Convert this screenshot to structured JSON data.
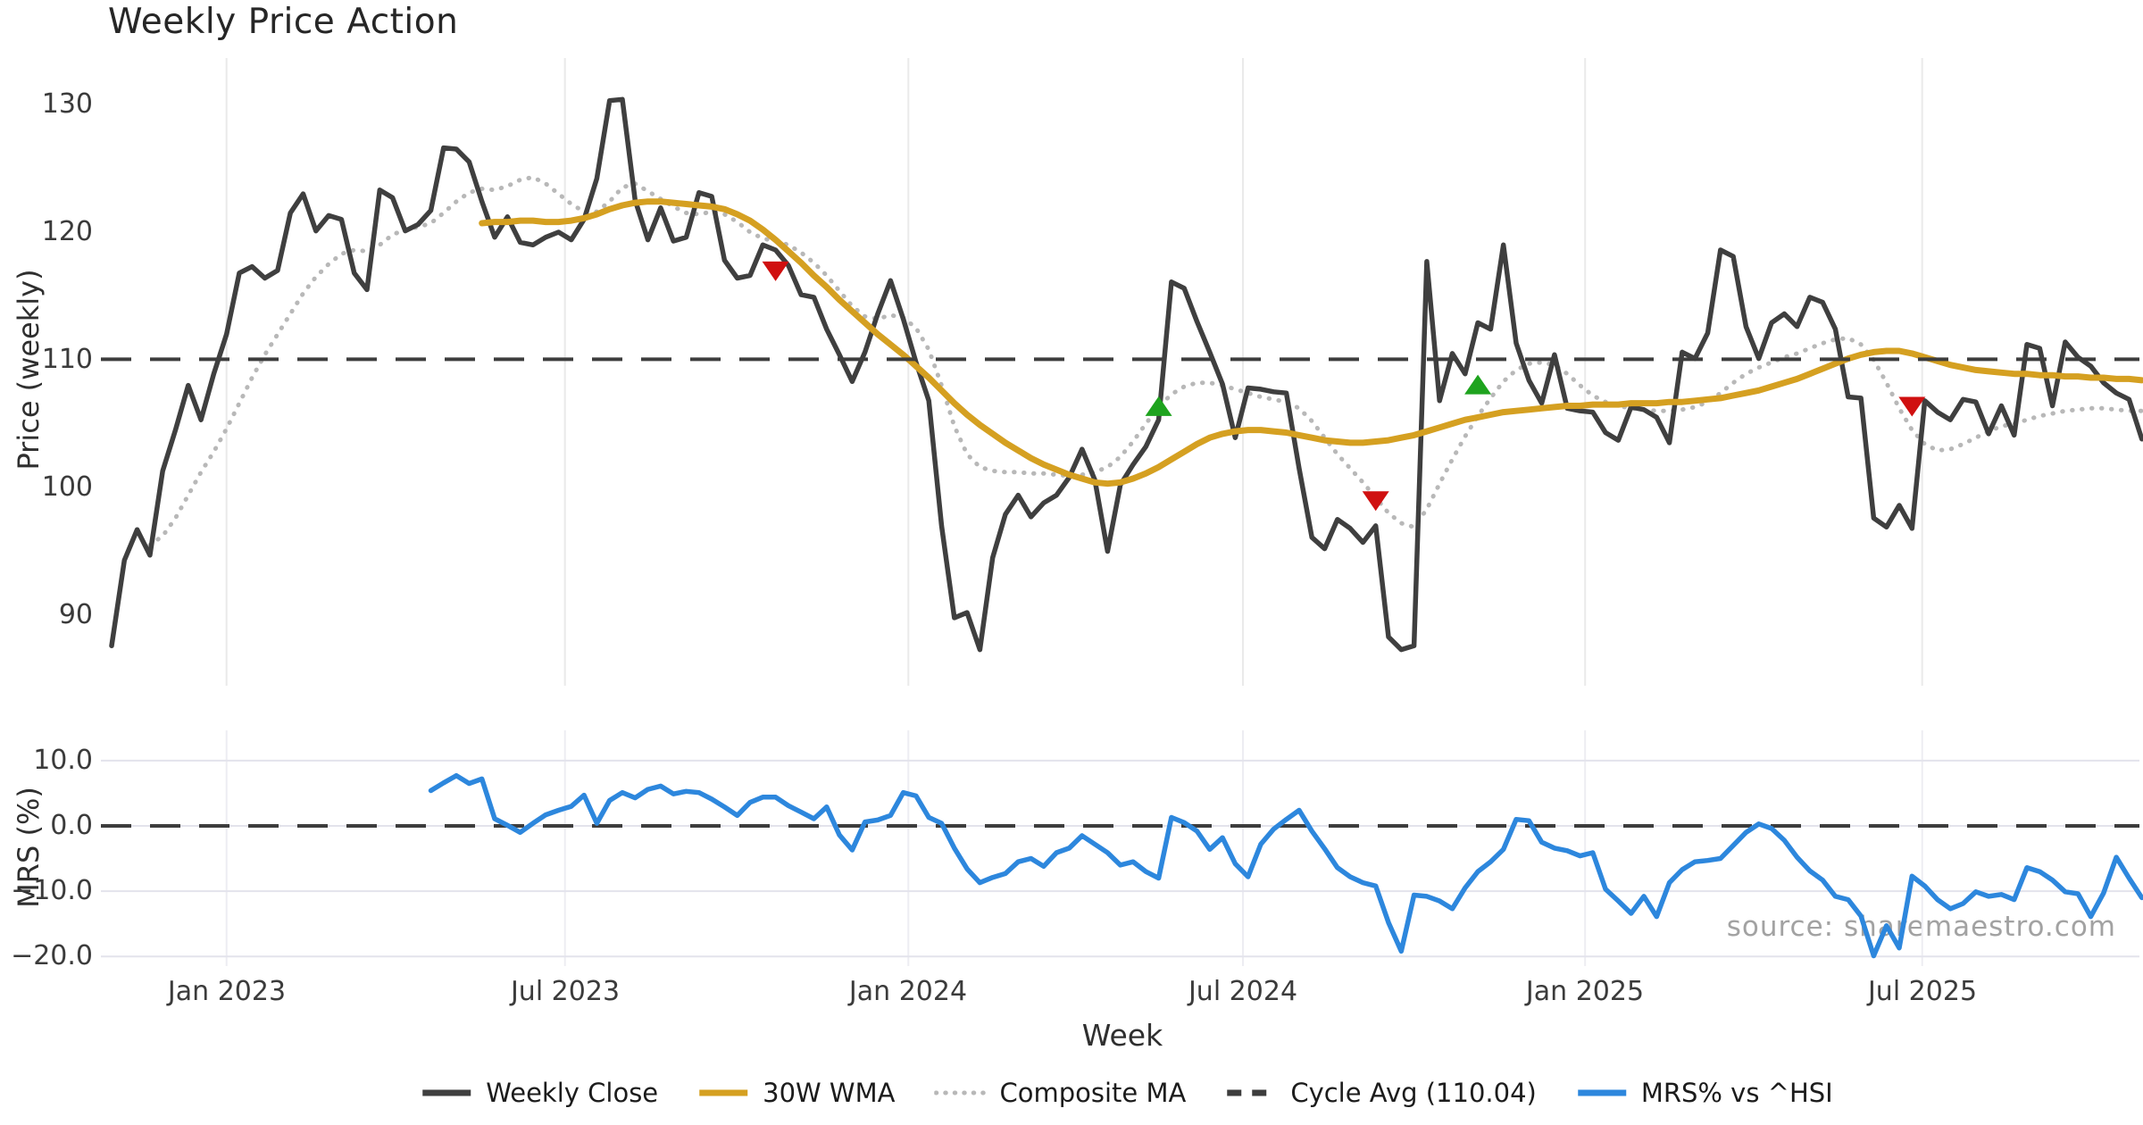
{
  "title": "Weekly Price Action",
  "source": "source: sharemaestro.com",
  "legend": {
    "items": [
      {
        "label": "Weekly Close",
        "color": "#3f3f3f",
        "style": "solid"
      },
      {
        "label": "30W WMA",
        "color": "#d5a021",
        "style": "solid"
      },
      {
        "label": "Composite MA",
        "color": "#b8b8b8",
        "style": "dotted"
      },
      {
        "label": "Cycle Avg (110.04)",
        "color": "#3d3d3d",
        "style": "dashed"
      },
      {
        "label": "MRS% vs ^HSI",
        "color": "#2d87dd",
        "style": "solid"
      }
    ]
  },
  "chart_data": {
    "type": "line",
    "x_unit": "weekly points (week index from first plotted week)",
    "xlabel": "Week",
    "x_ticks": [
      {
        "week": 9.0,
        "label": "Jan 2023"
      },
      {
        "week": 35.5,
        "label": "Jul 2023"
      },
      {
        "week": 62.4,
        "label": "Jan 2024"
      },
      {
        "week": 88.6,
        "label": "Jul 2024"
      },
      {
        "week": 115.4,
        "label": "Jan 2025"
      },
      {
        "week": 141.8,
        "label": "Jul 2025"
      }
    ],
    "grid": {
      "vertical": true,
      "horizontal_bottom_panel": true
    },
    "panels": [
      {
        "name": "price",
        "ylabel": "Price (weekly)",
        "ylim": [
          84.5,
          133.6
        ],
        "y_ticks": [
          {
            "v": 130,
            "label": "130"
          },
          {
            "v": 120,
            "label": "120"
          },
          {
            "v": 110,
            "label": "110"
          },
          {
            "v": 100,
            "label": "100"
          },
          {
            "v": 90,
            "label": "90"
          }
        ],
        "cycle_avg": 110.04,
        "series": [
          {
            "name": "Weekly Close",
            "color": "#3f3f3f",
            "style": "solid",
            "width": 5.5,
            "start_week": 0,
            "values": [
              87.6,
              94.3,
              96.7,
              94.7,
              101.3,
              104.5,
              108.0,
              105.3,
              108.9,
              112.0,
              116.8,
              117.3,
              116.4,
              117.0,
              121.5,
              123.0,
              120.1,
              121.3,
              121.0,
              116.8,
              115.5,
              123.3,
              122.7,
              120.1,
              120.6,
              121.7,
              126.6,
              126.5,
              125.5,
              122.4,
              119.6,
              121.2,
              119.2,
              119.0,
              119.6,
              120.0,
              119.4,
              121.0,
              124.2,
              130.3,
              130.4,
              122.5,
              119.4,
              121.9,
              119.3,
              119.6,
              123.1,
              122.8,
              117.8,
              116.4,
              116.6,
              119.0,
              118.6,
              117.4,
              115.1,
              114.9,
              112.4,
              110.4,
              108.3,
              110.6,
              113.6,
              116.2,
              113.2,
              109.8,
              106.8,
              97.0,
              89.8,
              90.2,
              87.3,
              94.5,
              97.9,
              99.4,
              97.7,
              98.8,
              99.4,
              100.8,
              103.0,
              100.6,
              95.0,
              100.2,
              101.8,
              103.2,
              105.3,
              116.1,
              115.6,
              113.0,
              110.6,
              108.1,
              103.9,
              107.8,
              107.7,
              107.5,
              107.4,
              101.5,
              96.1,
              95.2,
              97.5,
              96.8,
              95.7,
              97.0,
              88.3,
              87.3,
              87.6,
              117.7,
              106.8,
              110.5,
              108.9,
              112.9,
              112.4,
              119.0,
              111.3,
              108.4,
              106.6,
              110.4,
              106.2,
              106.0,
              105.9,
              104.3,
              103.7,
              106.3,
              106.1,
              105.5,
              103.5,
              110.6,
              110.1,
              112.1,
              118.6,
              118.1,
              112.6,
              110.1,
              112.9,
              113.6,
              112.6,
              114.9,
              114.5,
              112.4,
              107.1,
              107.0,
              97.6,
              96.9,
              98.6,
              96.8,
              106.8,
              105.9,
              105.3,
              106.9,
              106.7,
              104.2,
              106.4,
              104.1,
              111.2,
              110.9,
              106.4,
              111.4,
              110.2,
              109.5,
              108.2,
              107.4,
              106.9,
              103.8
            ]
          },
          {
            "name": "30W WMA",
            "color": "#d5a021",
            "style": "solid",
            "width": 7,
            "start_week": 29,
            "values": [
              120.7,
              120.8,
              120.8,
              120.9,
              120.9,
              120.8,
              120.8,
              120.9,
              121.1,
              121.4,
              121.8,
              122.1,
              122.3,
              122.4,
              122.4,
              122.3,
              122.2,
              122.1,
              122.0,
              121.8,
              121.4,
              120.9,
              120.2,
              119.4,
              118.5,
              117.6,
              116.6,
              115.7,
              114.7,
              113.8,
              112.9,
              112.0,
              111.2,
              110.4,
              109.5,
              108.6,
              107.6,
              106.6,
              105.7,
              104.9,
              104.2,
              103.5,
              102.9,
              102.3,
              101.8,
              101.4,
              101.0,
              100.7,
              100.4,
              100.3,
              100.4,
              100.7,
              101.1,
              101.6,
              102.2,
              102.8,
              103.4,
              103.9,
              104.2,
              104.4,
              104.5,
              104.5,
              104.4,
              104.3,
              104.1,
              103.9,
              103.7,
              103.6,
              103.5,
              103.5,
              103.6,
              103.7,
              103.9,
              104.1,
              104.4,
              104.7,
              105.0,
              105.3,
              105.5,
              105.7,
              105.9,
              106.0,
              106.1,
              106.2,
              106.3,
              106.4,
              106.4,
              106.5,
              106.5,
              106.5,
              106.6,
              106.6,
              106.6,
              106.7,
              106.7,
              106.8,
              106.9,
              107.0,
              107.2,
              107.4,
              107.6,
              107.9,
              108.2,
              108.5,
              108.9,
              109.3,
              109.7,
              110.1,
              110.4,
              110.6,
              110.7,
              110.7,
              110.5,
              110.2,
              109.9,
              109.6,
              109.4,
              109.2,
              109.1,
              109.0,
              108.9,
              108.9,
              108.8,
              108.8,
              108.7,
              108.7,
              108.6,
              108.6,
              108.5,
              108.5,
              108.4
            ]
          },
          {
            "name": "Composite MA",
            "color": "#b8b8b8",
            "style": "dotted",
            "width": 5,
            "start_week": 3,
            "values": [
              95.5,
              96.2,
              97.6,
              99.4,
              101.2,
              102.8,
              104.6,
              106.6,
              108.6,
              110.4,
              112.0,
              113.6,
              115.2,
              116.5,
              117.5,
              118.3,
              118.6,
              118.5,
              119.0,
              119.8,
              120.2,
              120.4,
              120.7,
              121.5,
              122.4,
              123.1,
              123.4,
              123.3,
              123.6,
              124.1,
              124.3,
              123.8,
              123.0,
              122.2,
              121.6,
              121.6,
              122.4,
              123.5,
              123.8,
              123.2,
              122.6,
              122.0,
              121.5,
              121.4,
              121.6,
              121.4,
              120.8,
              120.0,
              119.5,
              119.3,
              119.0,
              118.4,
              117.6,
              116.6,
              115.4,
              114.2,
              113.4,
              113.2,
              113.5,
              113.3,
              112.5,
              110.8,
              108.0,
              104.8,
              102.6,
              101.6,
              101.3,
              101.2,
              101.2,
              101.1,
              101.1,
              101.0,
              100.9,
              101.0,
              101.2,
              101.6,
              102.4,
              103.6,
              105.0,
              106.3,
              107.3,
              107.9,
              108.2,
              108.2,
              108.0,
              107.7,
              107.4,
              107.1,
              106.9,
              106.7,
              106.2,
              105.2,
              103.9,
              102.6,
              101.5,
              100.4,
              99.2,
              98.0,
              97.2,
              96.9,
              98.3,
              100.3,
              102.2,
              104.0,
              105.6,
              107.0,
              108.3,
              109.2,
              109.7,
              109.8,
              109.6,
              108.9,
              108.0,
              107.2,
              106.7,
              106.4,
              106.2,
              106.1,
              106.0,
              106.0,
              106.1,
              106.3,
              106.7,
              107.4,
              108.2,
              108.9,
              109.4,
              109.8,
              110.2,
              110.5,
              110.9,
              111.3,
              111.6,
              111.7,
              111.2,
              110.0,
              108.2,
              106.2,
              104.5,
              103.4,
              102.9,
              103.0,
              103.4,
              103.9,
              104.4,
              104.8,
              105.0,
              105.3,
              105.6,
              105.8,
              106.0,
              106.1,
              106.2,
              106.2,
              106.1,
              106.0,
              106.0
            ]
          }
        ],
        "markers": {
          "sell": {
            "color": "#d01010",
            "shape": "triangle-down",
            "points": [
              {
                "week": 52,
                "value": 117.0
              },
              {
                "week": 99,
                "value": 99.0
              },
              {
                "week": 141,
                "value": 106.4
              }
            ]
          },
          "buy": {
            "color": "#1ea31e",
            "shape": "triangle-up",
            "points": [
              {
                "week": 82,
                "value": 106.3
              },
              {
                "week": 107,
                "value": 108.0
              }
            ]
          }
        }
      },
      {
        "name": "mrs",
        "ylabel": "MRS (%)",
        "ylim": [
          -21.5,
          14.6
        ],
        "y_ticks": [
          {
            "v": 10,
            "label": "10.0"
          },
          {
            "v": 0,
            "label": "0.0"
          },
          {
            "v": -10,
            "label": "−10.0"
          },
          {
            "v": -20,
            "label": "−20.0"
          }
        ],
        "zero_line_dashed": true,
        "series": [
          {
            "name": "MRS% vs ^HSI",
            "color": "#2d87dd",
            "style": "solid",
            "width": 5.5,
            "start_week": 25,
            "values": [
              5.4,
              6.6,
              7.7,
              6.5,
              7.2,
              1.1,
              0.1,
              -1.0,
              0.4,
              1.7,
              2.4,
              3.0,
              4.7,
              0.4,
              3.9,
              5.1,
              4.3,
              5.6,
              6.1,
              4.9,
              5.3,
              5.1,
              4.1,
              2.9,
              1.6,
              3.6,
              4.4,
              4.4,
              3.1,
              2.1,
              1.1,
              2.9,
              -1.4,
              -3.7,
              0.6,
              0.9,
              1.6,
              5.1,
              4.6,
              1.3,
              0.4,
              -3.4,
              -6.6,
              -8.7,
              -7.9,
              -7.3,
              -5.5,
              -5.0,
              -6.2,
              -4.1,
              -3.4,
              -1.5,
              -2.8,
              -4.1,
              -6.0,
              -5.5,
              -7.0,
              -8.0,
              1.3,
              0.5,
              -0.8,
              -3.6,
              -1.8,
              -5.8,
              -7.8,
              -2.8,
              -0.5,
              1.0,
              2.4,
              -0.8,
              -3.5,
              -6.4,
              -7.8,
              -8.7,
              -9.2,
              -14.8,
              -19.2,
              -10.6,
              -10.8,
              -11.5,
              -12.7,
              -9.5,
              -7.0,
              -5.5,
              -3.6,
              1.0,
              0.8,
              -2.5,
              -3.4,
              -3.8,
              -4.6,
              -4.1,
              -9.7,
              -11.5,
              -13.4,
              -10.8,
              -13.9,
              -8.7,
              -6.7,
              -5.5,
              -5.3,
              -5.0,
              -3.0,
              -1.0,
              0.3,
              -0.4,
              -2.2,
              -4.8,
              -6.9,
              -8.3,
              -10.8,
              -11.3,
              -13.8,
              -19.9,
              -15.3,
              -18.7,
              -7.7,
              -9.2,
              -11.3,
              -12.7,
              -11.9,
              -10.1,
              -10.8,
              -10.5,
              -11.3,
              -6.4,
              -7.0,
              -8.3,
              -10.1,
              -10.4,
              -13.9,
              -10.3,
              -4.8,
              -8.0,
              -11.0
            ]
          }
        ]
      }
    ]
  }
}
